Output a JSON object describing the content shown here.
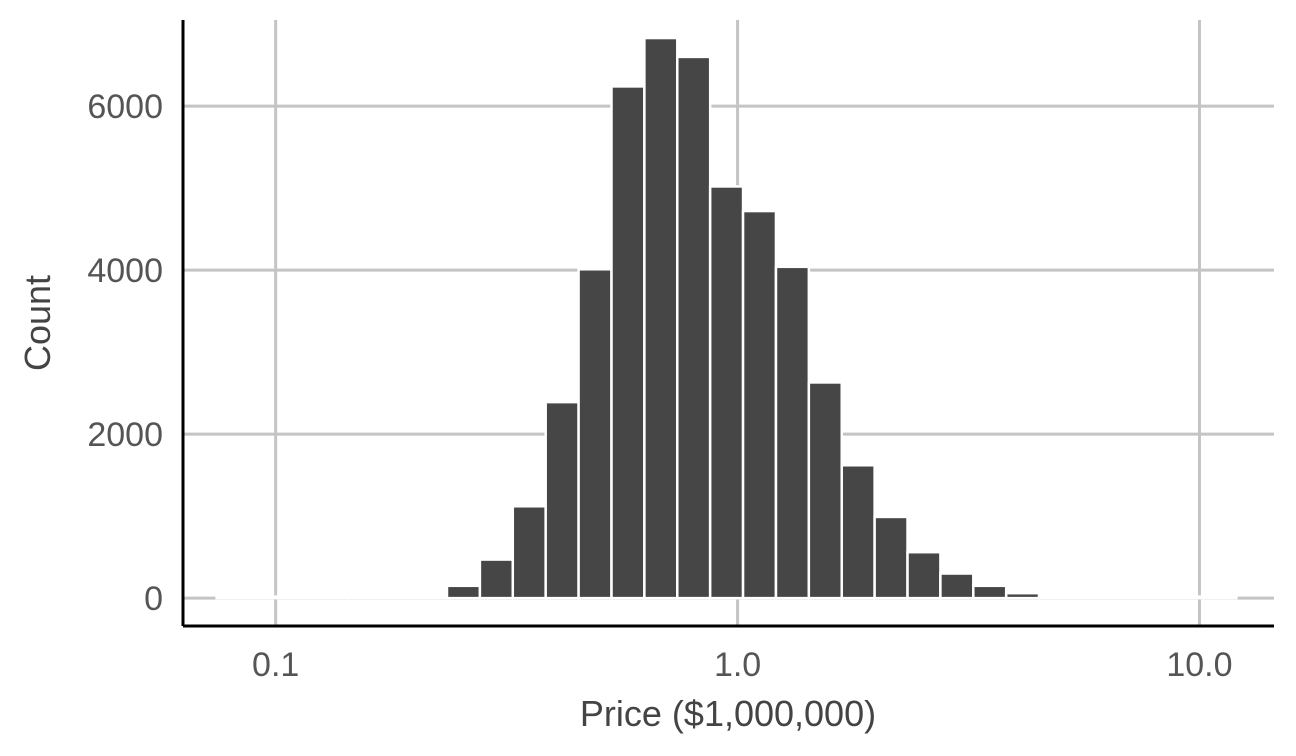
{
  "chart_data": {
    "type": "bar",
    "title": "",
    "xlabel": "Price ($1,000,000)",
    "ylabel": "Count",
    "x_scale": "log10",
    "xlim": [
      0.063,
      14.5
    ],
    "ylim": [
      -340,
      7050
    ],
    "x_ticks": [
      {
        "value": 0.1,
        "label": "0.1"
      },
      {
        "value": 1.0,
        "label": "1.0"
      },
      {
        "value": 10.0,
        "label": "10.0"
      }
    ],
    "y_ticks": [
      {
        "value": 0,
        "label": "0"
      },
      {
        "value": 2000,
        "label": "2000"
      },
      {
        "value": 4000,
        "label": "4000"
      },
      {
        "value": 6000,
        "label": "6000"
      }
    ],
    "grid": true,
    "bar_color": "#464646",
    "bins": [
      {
        "x0": 0.0745,
        "x1": 0.0878,
        "count": 3
      },
      {
        "x0": 0.0878,
        "x1": 0.1035,
        "count": 5
      },
      {
        "x0": 0.1035,
        "x1": 0.1219,
        "count": 8
      },
      {
        "x0": 0.1219,
        "x1": 0.1436,
        "count": 10
      },
      {
        "x0": 0.1436,
        "x1": 0.1692,
        "count": 12
      },
      {
        "x0": 0.1692,
        "x1": 0.1994,
        "count": 10
      },
      {
        "x0": 0.1994,
        "x1": 0.2349,
        "count": 12
      },
      {
        "x0": 0.2349,
        "x1": 0.2768,
        "count": 150
      },
      {
        "x0": 0.2768,
        "x1": 0.3261,
        "count": 470
      },
      {
        "x0": 0.3261,
        "x1": 0.3842,
        "count": 1120
      },
      {
        "x0": 0.3842,
        "x1": 0.4527,
        "count": 2390
      },
      {
        "x0": 0.4527,
        "x1": 0.5334,
        "count": 4010
      },
      {
        "x0": 0.5334,
        "x1": 0.6284,
        "count": 6240
      },
      {
        "x0": 0.6284,
        "x1": 0.7404,
        "count": 6830
      },
      {
        "x0": 0.7404,
        "x1": 0.8723,
        "count": 6600
      },
      {
        "x0": 0.8723,
        "x1": 1.0277,
        "count": 5020
      },
      {
        "x0": 1.0277,
        "x1": 1.2109,
        "count": 4720
      },
      {
        "x0": 1.2109,
        "x1": 1.4266,
        "count": 4040
      },
      {
        "x0": 1.4266,
        "x1": 1.6808,
        "count": 2630
      },
      {
        "x0": 1.6808,
        "x1": 1.9802,
        "count": 1620
      },
      {
        "x0": 1.9802,
        "x1": 2.3331,
        "count": 990
      },
      {
        "x0": 2.3331,
        "x1": 2.7488,
        "count": 560
      },
      {
        "x0": 2.7488,
        "x1": 3.2386,
        "count": 300
      },
      {
        "x0": 3.2386,
        "x1": 3.8156,
        "count": 150
      },
      {
        "x0": 3.8156,
        "x1": 4.4954,
        "count": 60
      },
      {
        "x0": 4.4954,
        "x1": 5.2964,
        "count": 30
      },
      {
        "x0": 5.2964,
        "x1": 6.2401,
        "count": 12
      },
      {
        "x0": 6.2401,
        "x1": 7.3519,
        "count": 8
      },
      {
        "x0": 7.3519,
        "x1": 8.6618,
        "count": 6
      },
      {
        "x0": 8.6618,
        "x1": 10.205,
        "count": 5
      },
      {
        "x0": 10.205,
        "x1": 12.024,
        "count": 4
      }
    ]
  }
}
